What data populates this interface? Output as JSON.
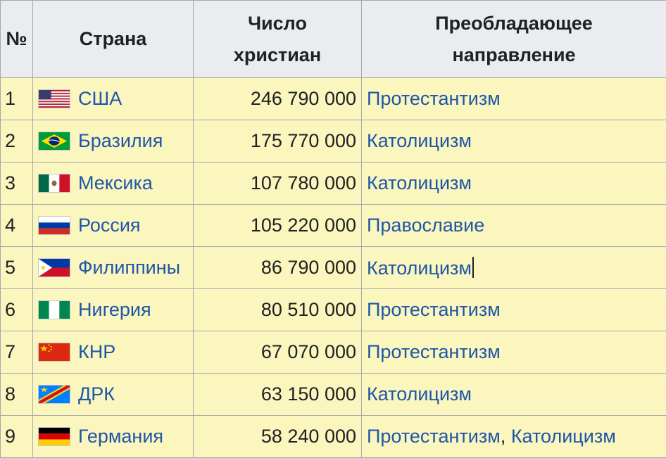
{
  "table": {
    "headers": {
      "num": "№",
      "country": "Страна",
      "count_line1": "Число",
      "count_line2": "христиан",
      "direction_line1": "Преобладающее",
      "direction_line2": "направление"
    },
    "rows": [
      {
        "num": "1",
        "country": "США",
        "flag": "usa-flag-icon",
        "count": "246 790 000",
        "direction": "Протестантизм"
      },
      {
        "num": "2",
        "country": "Бразилия",
        "flag": "brazil-flag-icon",
        "count": "175 770 000",
        "direction": "Католицизм"
      },
      {
        "num": "3",
        "country": "Мексика",
        "flag": "mexico-flag-icon",
        "count": "107 780 000",
        "direction": "Католицизм"
      },
      {
        "num": "4",
        "country": "Россия",
        "flag": "russia-flag-icon",
        "count": "105 220 000",
        "direction": "Православие"
      },
      {
        "num": "5",
        "country": "Филиппины",
        "flag": "philippines-flag-icon",
        "count": "86 790 000",
        "direction": "Католицизм"
      },
      {
        "num": "6",
        "country": "Нигерия",
        "flag": "nigeria-flag-icon",
        "count": "80 510 000",
        "direction": "Протестантизм"
      },
      {
        "num": "7",
        "country": "КНР",
        "flag": "china-flag-icon",
        "count": "67 070 000",
        "direction": "Протестантизм"
      },
      {
        "num": "8",
        "country": "ДРК",
        "flag": "drc-flag-icon",
        "count": "63 150 000",
        "direction": "Католицизм"
      },
      {
        "num": "9",
        "country": "Германия",
        "flag": "germany-flag-icon",
        "count": "58 240 000",
        "direction": "Протестантизм",
        "direction_separator": ", ",
        "direction_2": "Католицизм"
      }
    ]
  },
  "colors": {
    "header_bg": "#eaecf0",
    "row_bg": "#fbf5be",
    "border": "#a2a9b1",
    "link": "#1d56a8",
    "text": "#202122"
  }
}
